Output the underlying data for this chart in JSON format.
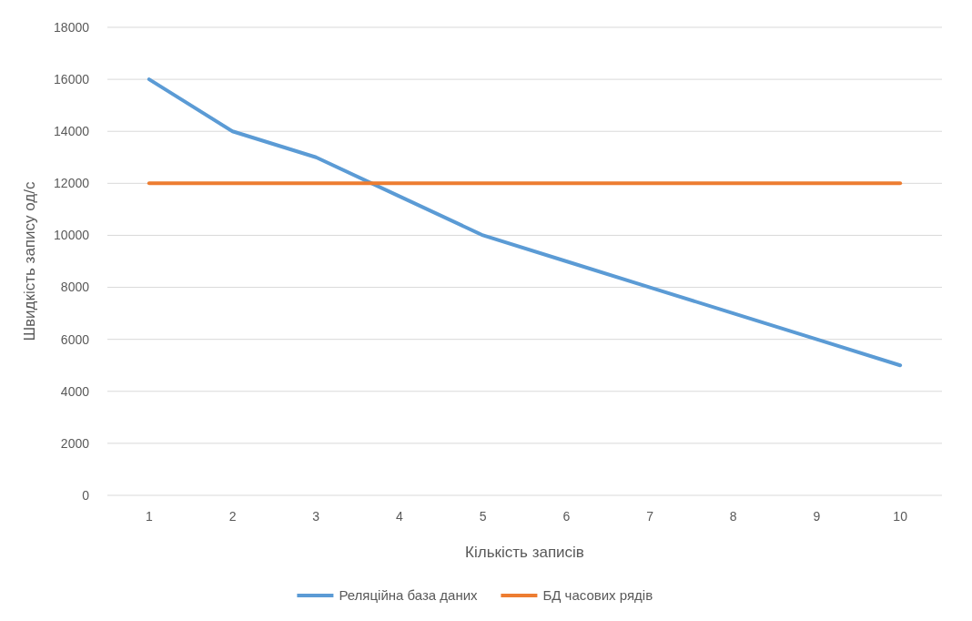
{
  "chart_data": {
    "type": "line",
    "xlabel": "Кількість записів",
    "ylabel": "Швидкість запису од/с",
    "categories": [
      "1",
      "2",
      "3",
      "4",
      "5",
      "6",
      "7",
      "8",
      "9",
      "10"
    ],
    "series": [
      {
        "name": "Реляційна база даних",
        "color": "#5b9bd5",
        "values": [
          16000,
          14000,
          13000,
          11500,
          10000,
          9000,
          8000,
          7000,
          6000,
          5000
        ]
      },
      {
        "name": "БД часових рядів",
        "color": "#ed7d31",
        "values": [
          12000,
          12000,
          12000,
          12000,
          12000,
          12000,
          12000,
          12000,
          12000,
          12000
        ]
      }
    ],
    "ylim": [
      0,
      18000
    ],
    "yticks": [
      0,
      2000,
      4000,
      6000,
      8000,
      10000,
      12000,
      14000,
      16000,
      18000
    ],
    "grid": "y",
    "legend": "bottom",
    "marker": "none",
    "line_style": "solid"
  }
}
